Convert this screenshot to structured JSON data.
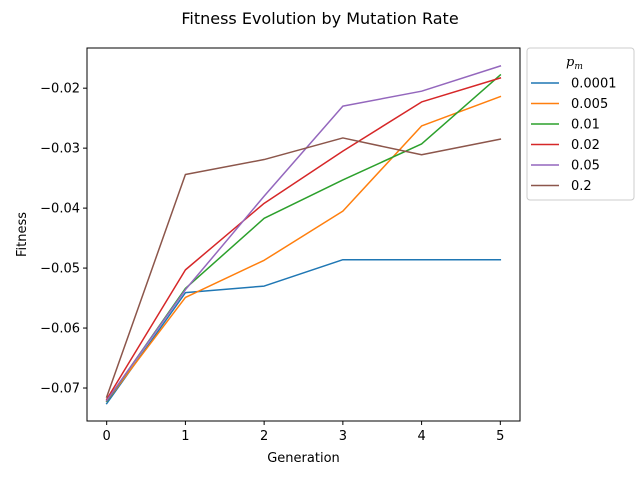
{
  "chart_data": {
    "type": "line",
    "title": "Fitness Evolution by Mutation Rate",
    "xlabel": "Generation",
    "ylabel": "Fitness",
    "x": [
      0,
      1,
      2,
      3,
      4,
      5
    ],
    "xticks": [
      0,
      1,
      2,
      3,
      4,
      5
    ],
    "xtick_labels": [
      "0",
      "1",
      "2",
      "3",
      "4",
      "5"
    ],
    "xlim": [
      -0.25,
      5.25
    ],
    "yticks": [
      -0.07,
      -0.06,
      -0.05,
      -0.04,
      -0.03,
      -0.02
    ],
    "ytick_labels": [
      "−0.07",
      "−0.06",
      "−0.05",
      "−0.04",
      "−0.03",
      "−0.02"
    ],
    "ylim": [
      -0.0755,
      -0.0133
    ],
    "grid": false,
    "legend": {
      "title_main": "p",
      "title_sub": "m",
      "placement": "outside-right"
    },
    "series": [
      {
        "name": "0.0001",
        "color": "#1f77b4",
        "values": [
          -0.0726,
          -0.0541,
          -0.053,
          -0.0486,
          -0.0486,
          -0.0486
        ]
      },
      {
        "name": "0.005",
        "color": "#ff7f0e",
        "values": [
          -0.0722,
          -0.0549,
          -0.0487,
          -0.0405,
          -0.0263,
          -0.0214
        ]
      },
      {
        "name": "0.01",
        "color": "#2ca02c",
        "values": [
          -0.0722,
          -0.0534,
          -0.0417,
          -0.0353,
          -0.0293,
          -0.0178
        ]
      },
      {
        "name": "0.02",
        "color": "#d62728",
        "values": [
          -0.0719,
          -0.0503,
          -0.0392,
          -0.0305,
          -0.0223,
          -0.0183
        ]
      },
      {
        "name": "0.05",
        "color": "#9467bd",
        "values": [
          -0.0721,
          -0.0536,
          -0.038,
          -0.023,
          -0.0205,
          -0.0163
        ]
      },
      {
        "name": "0.2",
        "color": "#8c564b",
        "values": [
          -0.0715,
          -0.0344,
          -0.0319,
          -0.0283,
          -0.0311,
          -0.0285
        ]
      }
    ]
  }
}
